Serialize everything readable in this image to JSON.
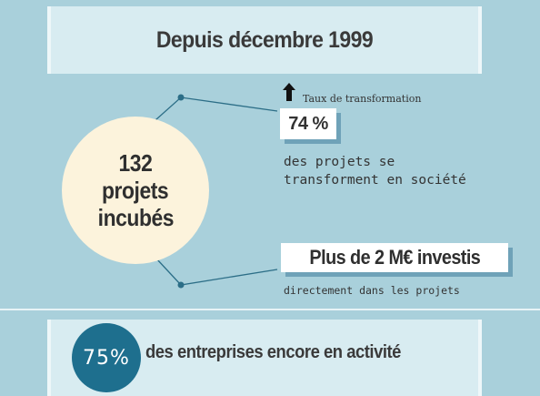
{
  "header": {
    "title": "Depuis décembre 1999"
  },
  "circle": {
    "line1": "132",
    "line2": "projets",
    "line3": "incubés"
  },
  "transformation": {
    "label": "Taux de transformation",
    "value": "74 %",
    "desc_line1": "des projets se",
    "desc_line2": "transforment en société"
  },
  "investment": {
    "value": "Plus de 2 M€ investis",
    "sub": "directement dans les projets"
  },
  "activity": {
    "percent": "75%",
    "text": "des entreprises encore en activité"
  },
  "colors": {
    "background": "#a9d0db",
    "band": "#d8ecf1",
    "circle": "#fcf3dc",
    "accent": "#1e6f8e",
    "shadow": "#6fa2b8"
  },
  "icons": {
    "up_arrow": "arrow-up-icon"
  }
}
